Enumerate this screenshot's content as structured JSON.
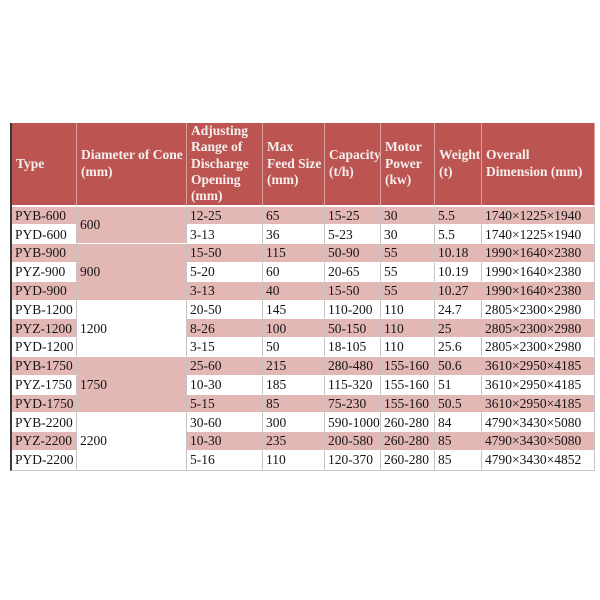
{
  "page": {
    "background": "#ffffff"
  },
  "colors": {
    "header_bg": "#bc5552",
    "header_text": "#f5efee",
    "band_pink": "#e3b8b4",
    "band_white": "#ffffff",
    "body_text": "#151515",
    "grid_line": "#c3c3c3",
    "outer_left_border": "#383838"
  },
  "table": {
    "columns": [
      {
        "key": "type",
        "label": "Type"
      },
      {
        "key": "diameter",
        "label": "Diameter of Cone (mm)"
      },
      {
        "key": "adjusting",
        "label": "Adjusting Range of Discharge Opening (mm)"
      },
      {
        "key": "max_feed",
        "label": "Max Feed Size (mm)"
      },
      {
        "key": "capacity",
        "label": "Capacity (t/h)"
      },
      {
        "key": "motor",
        "label": "Motor Power (kw)"
      },
      {
        "key": "weight",
        "label": "Weight (t)"
      },
      {
        "key": "dimension",
        "label": "Overall Dimension (mm)"
      }
    ],
    "groups": [
      {
        "diameter": "600",
        "start": 0,
        "span": 2,
        "shade": "pink"
      },
      {
        "diameter": "900",
        "start": 2,
        "span": 3,
        "shade": "pink"
      },
      {
        "diameter": "1200",
        "start": 5,
        "span": 3,
        "shade": "white"
      },
      {
        "diameter": "1750",
        "start": 8,
        "span": 3,
        "shade": "pink"
      },
      {
        "diameter": "2200",
        "start": 11,
        "span": 3,
        "shade": "white"
      }
    ],
    "rows": [
      {
        "type": "PYB-600",
        "adjusting": "12-25",
        "max_feed": "65",
        "capacity": "15-25",
        "motor": "30",
        "weight": "5.5",
        "dimension": "1740×1225×1940",
        "shade": "pink"
      },
      {
        "type": "PYD-600",
        "adjusting": "3-13",
        "max_feed": "36",
        "capacity": "5-23",
        "motor": "30",
        "weight": "5.5",
        "dimension": "1740×1225×1940",
        "shade": "white"
      },
      {
        "type": "PYB-900",
        "adjusting": "15-50",
        "max_feed": "115",
        "capacity": "50-90",
        "motor": "55",
        "weight": "10.18",
        "dimension": "1990×1640×2380",
        "shade": "pink"
      },
      {
        "type": "PYZ-900",
        "adjusting": "5-20",
        "max_feed": "60",
        "capacity": "20-65",
        "motor": "55",
        "weight": "10.19",
        "dimension": "1990×1640×2380",
        "shade": "white"
      },
      {
        "type": "PYD-900",
        "adjusting": "3-13",
        "max_feed": "40",
        "capacity": "15-50",
        "motor": "55",
        "weight": "10.27",
        "dimension": "1990×1640×2380",
        "shade": "pink"
      },
      {
        "type": "PYB-1200",
        "adjusting": "20-50",
        "max_feed": "145",
        "capacity": "110-200",
        "motor": "110",
        "weight": "24.7",
        "dimension": "2805×2300×2980",
        "shade": "white"
      },
      {
        "type": "PYZ-1200",
        "adjusting": "8-26",
        "max_feed": "100",
        "capacity": "50-150",
        "motor": "110",
        "weight": "25",
        "dimension": "2805×2300×2980",
        "shade": "pink"
      },
      {
        "type": "PYD-1200",
        "adjusting": "3-15",
        "max_feed": "50",
        "capacity": "18-105",
        "motor": "110",
        "weight": "25.6",
        "dimension": "2805×2300×2980",
        "shade": "white"
      },
      {
        "type": "PYB-1750",
        "adjusting": "25-60",
        "max_feed": "215",
        "capacity": "280-480",
        "motor": "155-160",
        "weight": "50.6",
        "dimension": "3610×2950×4185",
        "shade": "pink"
      },
      {
        "type": "PYZ-1750",
        "adjusting": "10-30",
        "max_feed": "185",
        "capacity": "115-320",
        "motor": "155-160",
        "weight": "51",
        "dimension": "3610×2950×4185",
        "shade": "white"
      },
      {
        "type": "PYD-1750",
        "adjusting": "5-15",
        "max_feed": "85",
        "capacity": "75-230",
        "motor": "155-160",
        "weight": "50.5",
        "dimension": "3610×2950×4185",
        "shade": "pink"
      },
      {
        "type": "PYB-2200",
        "adjusting": "30-60",
        "max_feed": "300",
        "capacity": "590-1000",
        "motor": "260-280",
        "weight": "84",
        "dimension": "4790×3430×5080",
        "shade": "white"
      },
      {
        "type": "PYZ-2200",
        "adjusting": "10-30",
        "max_feed": "235",
        "capacity": "200-580",
        "motor": "260-280",
        "weight": "85",
        "dimension": "4790×3430×5080",
        "shade": "pink"
      },
      {
        "type": "PYD-2200",
        "adjusting": "5-16",
        "max_feed": "110",
        "capacity": "120-370",
        "motor": "260-280",
        "weight": "85",
        "dimension": "4790×3430×4852",
        "shade": "white"
      }
    ]
  },
  "chart_data": {
    "type": "table",
    "columns": [
      "Type",
      "Diameter of Cone (mm)",
      "Adjusting Range of Discharge Opening (mm)",
      "Max Feed Size (mm)",
      "Capacity (t/h)",
      "Motor Power (kw)",
      "Weight (t)",
      "Overall Dimension (mm)"
    ],
    "rows": [
      [
        "PYB-600",
        "600",
        "12-25",
        "65",
        "15-25",
        "30",
        "5.5",
        "1740×1225×1940"
      ],
      [
        "PYD-600",
        "600",
        "3-13",
        "36",
        "5-23",
        "30",
        "5.5",
        "1740×1225×1940"
      ],
      [
        "PYB-900",
        "900",
        "15-50",
        "115",
        "50-90",
        "55",
        "10.18",
        "1990×1640×2380"
      ],
      [
        "PYZ-900",
        "900",
        "5-20",
        "60",
        "20-65",
        "55",
        "10.19",
        "1990×1640×2380"
      ],
      [
        "PYD-900",
        "900",
        "3-13",
        "40",
        "15-50",
        "55",
        "10.27",
        "1990×1640×2380"
      ],
      [
        "PYB-1200",
        "1200",
        "20-50",
        "145",
        "110-200",
        "110",
        "24.7",
        "2805×2300×2980"
      ],
      [
        "PYZ-1200",
        "1200",
        "8-26",
        "100",
        "50-150",
        "110",
        "25",
        "2805×2300×2980"
      ],
      [
        "PYD-1200",
        "1200",
        "3-15",
        "50",
        "18-105",
        "110",
        "25.6",
        "2805×2300×2980"
      ],
      [
        "PYB-1750",
        "1750",
        "25-60",
        "215",
        "280-480",
        "155-160",
        "50.6",
        "3610×2950×4185"
      ],
      [
        "PYZ-1750",
        "1750",
        "10-30",
        "185",
        "115-320",
        "155-160",
        "51",
        "3610×2950×4185"
      ],
      [
        "PYD-1750",
        "1750",
        "5-15",
        "85",
        "75-230",
        "155-160",
        "50.5",
        "3610×2950×4185"
      ],
      [
        "PYB-2200",
        "2200",
        "30-60",
        "300",
        "590-1000",
        "260-280",
        "84",
        "4790×3430×5080"
      ],
      [
        "PYZ-2200",
        "2200",
        "10-30",
        "235",
        "200-580",
        "260-280",
        "85",
        "4790×3430×5080"
      ],
      [
        "PYD-2200",
        "2200",
        "5-16",
        "110",
        "120-370",
        "260-280",
        "85",
        "4790×3430×4852"
      ]
    ]
  }
}
